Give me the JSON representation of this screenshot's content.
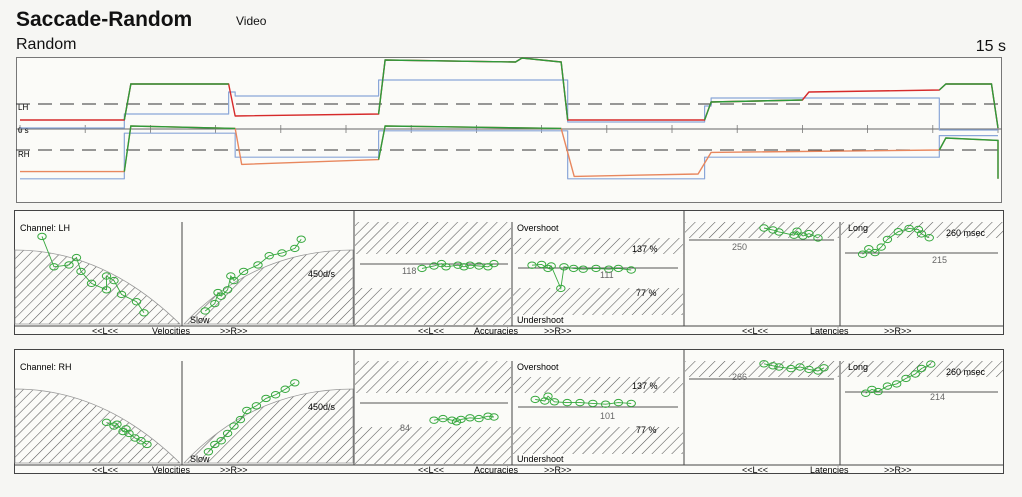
{
  "header": {
    "title": "Saccade-Random",
    "mode": "Video",
    "subtitle": "Random",
    "duration": "15 s"
  },
  "colors": {
    "left_eye": "#d62a2a",
    "right_eye": "#e8875e",
    "gaze": "#2e9a3a",
    "target": "#8aa6d8",
    "hatch": "#555555",
    "fit_marker": "#36a83e"
  },
  "chart_data": [
    {
      "type": "line",
      "title": "Random",
      "channels": [
        "LH",
        "0 s",
        "RH"
      ],
      "duration": "15 s",
      "xlim": [
        0,
        15
      ],
      "lh_target_steps": [
        [
          0,
          -1.2
        ],
        [
          1.6,
          -1.2
        ],
        [
          1.6,
          -0.5
        ],
        [
          3.2,
          -0.5
        ],
        [
          3.2,
          0.6
        ],
        [
          3.3,
          0.6
        ],
        [
          3.3,
          0.4
        ],
        [
          5.5,
          0.4
        ],
        [
          5.5,
          1.2
        ],
        [
          8.4,
          1.2
        ],
        [
          8.4,
          -0.9
        ],
        [
          10.5,
          -0.9
        ],
        [
          10.5,
          -0.1
        ],
        [
          10.6,
          -0.1
        ],
        [
          10.6,
          0.3
        ],
        [
          14.1,
          0.3
        ],
        [
          14.1,
          -1.3
        ],
        [
          15,
          -1.3
        ]
      ],
      "lh_eye_trace": [
        [
          0,
          -0.8
        ],
        [
          1.6,
          -0.8
        ],
        [
          1.7,
          1.0
        ],
        [
          3.2,
          1.0
        ],
        [
          3.3,
          -0.6
        ],
        [
          5.5,
          -0.5
        ],
        [
          5.6,
          2.2
        ],
        [
          7.6,
          2.1
        ],
        [
          7.7,
          2.3
        ],
        [
          8.3,
          2.1
        ],
        [
          8.4,
          -0.8
        ],
        [
          10.5,
          -0.8
        ],
        [
          10.6,
          0.1
        ],
        [
          12.0,
          0.2
        ],
        [
          12.1,
          0.6
        ],
        [
          14.1,
          0.7
        ],
        [
          14.2,
          1.0
        ],
        [
          14.9,
          1.0
        ],
        [
          15,
          -1.2
        ]
      ],
      "rh_target_steps": [
        [
          0,
          -1.2
        ],
        [
          1.6,
          -1.2
        ],
        [
          1.6,
          0.7
        ],
        [
          3.3,
          0.7
        ],
        [
          3.3,
          -0.3
        ],
        [
          5.5,
          -0.3
        ],
        [
          5.5,
          0.8
        ],
        [
          8.4,
          0.8
        ],
        [
          8.4,
          -1.2
        ],
        [
          10.5,
          -1.2
        ],
        [
          10.5,
          -0.3
        ],
        [
          14.1,
          -0.3
        ],
        [
          14.1,
          0.6
        ],
        [
          15,
          0.6
        ]
      ],
      "rh_eye_trace": [
        [
          0,
          -0.9
        ],
        [
          1.6,
          -0.9
        ],
        [
          1.7,
          1.0
        ],
        [
          3.3,
          0.9
        ],
        [
          3.4,
          -0.6
        ],
        [
          5.5,
          -0.4
        ],
        [
          5.6,
          1.0
        ],
        [
          8.3,
          0.9
        ],
        [
          8.5,
          -1.1
        ],
        [
          10.4,
          -1.0
        ],
        [
          10.6,
          -0.1
        ],
        [
          14.1,
          0.0
        ],
        [
          14.2,
          0.5
        ],
        [
          15,
          0.4
        ],
        [
          15,
          -1.2
        ]
      ]
    },
    {
      "type": "scatter",
      "channel_label": "Channel: LH",
      "sections": {
        "velocities": {
          "label": "Velocities",
          "left_nav": "<<L<<",
          "right_nav": ">>R>>",
          "threshold_label": "450d/s",
          "slow_label": "Slow",
          "left_points": [
            [
              0.12,
              0.93
            ],
            [
              0.2,
              0.6
            ],
            [
              0.3,
              0.62
            ],
            [
              0.38,
              0.55
            ],
            [
              0.45,
              0.42
            ],
            [
              0.55,
              0.35
            ],
            [
              0.65,
              0.3
            ],
            [
              0.75,
              0.22
            ],
            [
              0.8,
              0.1
            ],
            [
              0.55,
              0.5
            ],
            [
              0.6,
              0.45
            ],
            [
              0.35,
              0.7
            ]
          ],
          "right_points": [
            [
              0.12,
              0.12
            ],
            [
              0.18,
              0.2
            ],
            [
              0.22,
              0.28
            ],
            [
              0.26,
              0.35
            ],
            [
              0.3,
              0.45
            ],
            [
              0.36,
              0.55
            ],
            [
              0.45,
              0.62
            ],
            [
              0.52,
              0.72
            ],
            [
              0.6,
              0.75
            ],
            [
              0.68,
              0.8
            ],
            [
              0.72,
              0.9
            ],
            [
              0.2,
              0.32
            ],
            [
              0.28,
              0.5
            ]
          ]
        },
        "accuracies": {
          "label": "Accuracies",
          "left_nav": "<<L<<",
          "right_nav": ">>R>>",
          "overshoot_label": "Overshoot",
          "undershoot_label": "Undershoot",
          "upper_limit": "137 %",
          "lower_limit": "77 %",
          "left_mean": "118",
          "right_mean": "111",
          "left_points": [
            [
              0.42,
              0.52
            ],
            [
              0.5,
              0.55
            ],
            [
              0.58,
              0.54
            ],
            [
              0.66,
              0.56
            ],
            [
              0.7,
              0.54
            ],
            [
              0.74,
              0.56
            ],
            [
              0.8,
              0.55
            ],
            [
              0.86,
              0.54
            ],
            [
              0.9,
              0.58
            ],
            [
              0.55,
              0.58
            ]
          ],
          "right_points": [
            [
              0.1,
              0.56
            ],
            [
              0.16,
              0.57
            ],
            [
              0.22,
              0.55
            ],
            [
              0.3,
              0.54
            ],
            [
              0.36,
              0.52
            ],
            [
              0.42,
              0.51
            ],
            [
              0.5,
              0.52
            ],
            [
              0.58,
              0.51
            ],
            [
              0.64,
              0.52
            ],
            [
              0.72,
              0.5
            ],
            [
              0.2,
              0.52
            ],
            [
              0.28,
              0.27
            ]
          ]
        },
        "latencies": {
          "label": "Latencies",
          "left_nav": "<<L<<",
          "right_nav": ">>R>>",
          "long_label": "Long",
          "long_limit": "260 msec",
          "left_mean": "250",
          "right_mean": "215",
          "left_points": [
            [
              0.5,
              0.9
            ],
            [
              0.56,
              0.85
            ],
            [
              0.6,
              0.8
            ],
            [
              0.7,
              0.72
            ],
            [
              0.72,
              0.82
            ],
            [
              0.76,
              0.7
            ],
            [
              0.8,
              0.76
            ],
            [
              0.86,
              0.65
            ]
          ],
          "right_points": [
            [
              0.12,
              0.45
            ],
            [
              0.16,
              0.55
            ],
            [
              0.2,
              0.48
            ],
            [
              0.24,
              0.58
            ],
            [
              0.28,
              0.72
            ],
            [
              0.35,
              0.86
            ],
            [
              0.42,
              0.92
            ],
            [
              0.48,
              0.9
            ],
            [
              0.5,
              0.82
            ],
            [
              0.55,
              0.75
            ]
          ]
        }
      }
    },
    {
      "type": "scatter",
      "channel_label": "Channel: RH",
      "sections": {
        "velocities": {
          "label": "Velocities",
          "left_nav": "<<L<<",
          "right_nav": ">>R>>",
          "threshold_label": "450d/s",
          "slow_label": "Slow",
          "left_points": [
            [
              0.55,
              0.42
            ],
            [
              0.6,
              0.38
            ],
            [
              0.62,
              0.4
            ],
            [
              0.66,
              0.32
            ],
            [
              0.7,
              0.3
            ],
            [
              0.74,
              0.25
            ],
            [
              0.78,
              0.22
            ],
            [
              0.82,
              0.18
            ],
            [
              0.68,
              0.35
            ]
          ],
          "right_points": [
            [
              0.14,
              0.1
            ],
            [
              0.18,
              0.18
            ],
            [
              0.22,
              0.22
            ],
            [
              0.26,
              0.3
            ],
            [
              0.3,
              0.38
            ],
            [
              0.34,
              0.45
            ],
            [
              0.38,
              0.55
            ],
            [
              0.44,
              0.6
            ],
            [
              0.5,
              0.68
            ],
            [
              0.56,
              0.72
            ],
            [
              0.62,
              0.78
            ],
            [
              0.68,
              0.85
            ]
          ]
        },
        "accuracies": {
          "label": "Accuracies",
          "left_nav": "<<L<<",
          "right_nav": ">>R>>",
          "overshoot_label": "Overshoot",
          "undershoot_label": "Undershoot",
          "upper_limit": "137 %",
          "lower_limit": "77 %",
          "left_mean": "84",
          "right_mean": "101",
          "left_points": [
            [
              0.5,
              0.36
            ],
            [
              0.56,
              0.38
            ],
            [
              0.62,
              0.36
            ],
            [
              0.68,
              0.37
            ],
            [
              0.74,
              0.39
            ],
            [
              0.8,
              0.38
            ],
            [
              0.86,
              0.41
            ],
            [
              0.9,
              0.4
            ],
            [
              0.65,
              0.34
            ]
          ],
          "right_points": [
            [
              0.12,
              0.62
            ],
            [
              0.18,
              0.6
            ],
            [
              0.24,
              0.59
            ],
            [
              0.32,
              0.58
            ],
            [
              0.4,
              0.58
            ],
            [
              0.48,
              0.57
            ],
            [
              0.56,
              0.56
            ],
            [
              0.64,
              0.58
            ],
            [
              0.72,
              0.57
            ],
            [
              0.2,
              0.66
            ]
          ]
        },
        "latencies": {
          "label": "Latencies",
          "left_nav": "<<L<<",
          "right_nav": ">>R>>",
          "long_label": "Long",
          "long_limit": "260 msec",
          "left_mean": "266",
          "right_mean": "214",
          "left_points": [
            [
              0.5,
              0.98
            ],
            [
              0.56,
              0.93
            ],
            [
              0.6,
              0.9
            ],
            [
              0.68,
              0.86
            ],
            [
              0.74,
              0.9
            ],
            [
              0.8,
              0.84
            ],
            [
              0.86,
              0.8
            ],
            [
              0.9,
              0.88
            ]
          ],
          "right_points": [
            [
              0.14,
              0.45
            ],
            [
              0.18,
              0.52
            ],
            [
              0.22,
              0.48
            ],
            [
              0.28,
              0.58
            ],
            [
              0.34,
              0.62
            ],
            [
              0.4,
              0.72
            ],
            [
              0.46,
              0.8
            ],
            [
              0.5,
              0.9
            ],
            [
              0.56,
              0.98
            ]
          ]
        }
      }
    }
  ]
}
